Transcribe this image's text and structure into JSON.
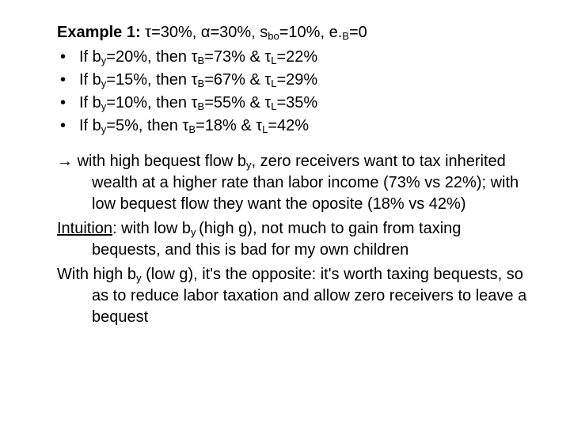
{
  "heading": {
    "label": "Example 1:",
    "params": " τ=30%, α=30%, s",
    "sb0_sub": "bo",
    "params2": "=10%, e.",
    "eB_sub": "B",
    "params3": "=0"
  },
  "bullets": [
    {
      "pre": "If b",
      "sub_y": "y",
      "mid": "=20%, then τ",
      "sub_B": "B",
      "mid2": "=73% & τ",
      "sub_L": "L",
      "end": "=22%"
    },
    {
      "pre": "If b",
      "sub_y": "y",
      "mid": "=15%, then τ",
      "sub_B": "B",
      "mid2": "=67% & τ",
      "sub_L": "L",
      "end": "=29%"
    },
    {
      "pre": "If b",
      "sub_y": "y",
      "mid": "=10%, then τ",
      "sub_B": "B",
      "mid2": "=55% & τ",
      "sub_L": "L",
      "end": "=35%"
    },
    {
      "pre": " If b",
      "sub_y": "y",
      "mid": "=5%,  then τ",
      "sub_B": "B",
      "mid2": "=18% & τ",
      "sub_L": "L",
      "end": "=42%"
    }
  ],
  "para1": {
    "arrow": "→ ",
    "t1": "with high bequest flow b",
    "sub_y": "y",
    "t2": ", zero receivers want to tax inherited wealth at a higher rate than labor income (73% vs 22%); with low bequest flow they want the oposite (18% vs 42%)"
  },
  "para2": {
    "label": "Intuition",
    "t1": ": with low b",
    "sub_y": "y ",
    "t2": "(high g), not much to gain from taxing bequests, and this is bad for my own children"
  },
  "para3": {
    "t1": "With high b",
    "sub_y": "y",
    "t2": " (low g), it's the opposite: it's worth taxing bequests, so as to reduce labor taxation and allow zero receivers to leave a bequest"
  }
}
